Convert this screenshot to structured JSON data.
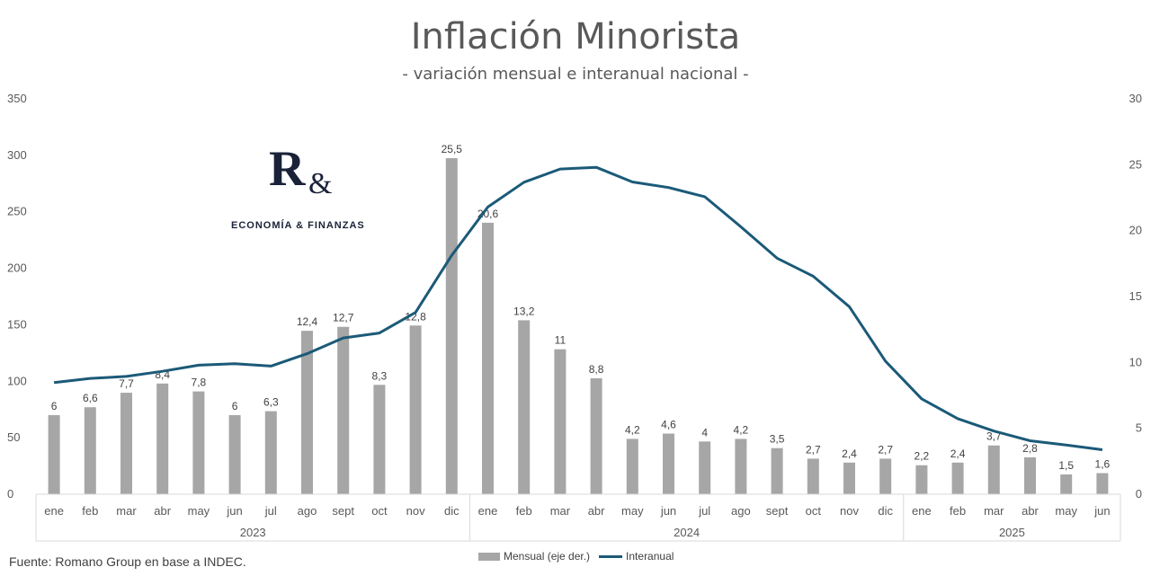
{
  "chart_data": {
    "type": "bar",
    "title": "Inflación Minorista",
    "subtitle": "- variación mensual e interanual nacional -",
    "left_axis": {
      "min": 0,
      "max": 350,
      "ticks": [
        "0",
        "50",
        "100",
        "150",
        "200",
        "250",
        "300",
        "350"
      ]
    },
    "right_axis": {
      "min": 0,
      "max": 30,
      "ticks": [
        "0",
        "5",
        "10",
        "15",
        "20",
        "25",
        "30"
      ]
    },
    "categories": [
      "ene",
      "feb",
      "mar",
      "abr",
      "may",
      "jun",
      "jul",
      "ago",
      "sept",
      "oct",
      "nov",
      "dic",
      "ene",
      "feb",
      "mar",
      "abr",
      "may",
      "jun",
      "jul",
      "ago",
      "sept",
      "oct",
      "nov",
      "dic",
      "ene",
      "feb",
      "mar",
      "abr",
      "may",
      "jun"
    ],
    "years": [
      {
        "label": "2023",
        "count": 12
      },
      {
        "label": "2024",
        "count": 12
      },
      {
        "label": "2025",
        "count": 6
      }
    ],
    "series": [
      {
        "name": "Mensual (eje der.)",
        "type": "bar",
        "axis": "right",
        "color": "#a6a6a6",
        "values": [
          6,
          6.6,
          7.7,
          8.4,
          7.8,
          6,
          6.3,
          12.4,
          12.7,
          8.3,
          12.8,
          25.5,
          20.6,
          13.2,
          11,
          8.8,
          4.2,
          4.6,
          4,
          4.2,
          3.5,
          2.7,
          2.4,
          2.7,
          2.2,
          2.4,
          3.7,
          2.8,
          1.5,
          1.6
        ],
        "labels": [
          "6",
          "6,6",
          "7,7",
          "8,4",
          "7,8",
          "6",
          "6,3",
          "12,4",
          "12,7",
          "8,3",
          "12,8",
          "25,5",
          "20,6",
          "13,2",
          "11",
          "8,8",
          "4,2",
          "4,6",
          "4",
          "4,2",
          "3,5",
          "2,7",
          "2,4",
          "2,7",
          "2,2",
          "2,4",
          "3,7",
          "2,8",
          "1,5",
          "1,6"
        ]
      },
      {
        "name": "Interanual",
        "type": "line",
        "axis": "left",
        "color": "#1b5a78",
        "values": [
          98.8,
          102.5,
          104.3,
          108.8,
          114.2,
          115.6,
          113.4,
          124.4,
          138.3,
          142.7,
          160.9,
          211.4,
          254.2,
          276.2,
          287.9,
          289.4,
          276.4,
          271.5,
          263.4,
          236.7,
          209.0,
          193.0,
          166.0,
          117.8,
          84.5,
          66.9,
          55.9,
          47.3,
          43.5,
          39.4
        ]
      }
    ],
    "source": "Fuente: Romano Group en base a INDEC.",
    "logo": {
      "mark": "R",
      "amp": "&",
      "text": "ECONOMÍA & FINANZAS"
    }
  }
}
